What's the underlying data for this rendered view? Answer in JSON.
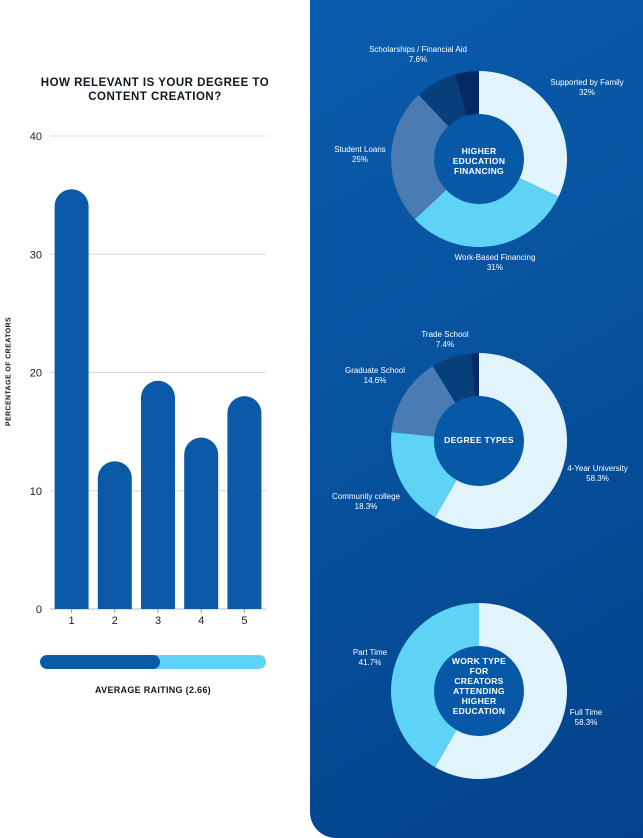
{
  "colors": {
    "bar": "#0a5aa8",
    "progress_track": "#5ed3f5",
    "panel_bg": "#07529e",
    "grid": "#d8d8d8",
    "donut_palette": [
      "#e2f4fb",
      "#5ed3f5",
      "#4a7bb3",
      "#063f7a",
      "#06357a",
      "#052a66"
    ]
  },
  "chart_data": [
    {
      "type": "bar",
      "title": "HOW RELEVANT IS YOUR DEGREE TO CONTENT CREATION?",
      "title_lines": [
        "HOW RELEVANT IS YOUR DEGREE TO",
        "CONTENT CREATION?"
      ],
      "xlabel": "",
      "ylabel": "PERCENTAGE OF CREATORS",
      "categories": [
        "1",
        "2",
        "3",
        "4",
        "5"
      ],
      "values": [
        35.5,
        12.5,
        19.3,
        14.5,
        18.0
      ],
      "ylim": [
        0,
        40
      ],
      "yticks": [
        0,
        10,
        20,
        30,
        40
      ],
      "grid": true
    },
    {
      "type": "pie",
      "center_label": "HIGHER EDUCATION FINANCING",
      "center_lines": [
        "HIGHER",
        "EDUCATION",
        "FINANCING"
      ],
      "slices": [
        {
          "name": "Supported by Family",
          "value": 32,
          "label": "32%"
        },
        {
          "name": "Work-Based Financing",
          "value": 31,
          "label": "31%"
        },
        {
          "name": "Student Loans",
          "value": 25,
          "label": "25%"
        },
        {
          "name": "Scholarships / Financial Aid",
          "value": 7.6,
          "label": "7.6%"
        },
        {
          "name": "",
          "value": 4.4,
          "label": ""
        }
      ]
    },
    {
      "type": "pie",
      "center_label": "DEGREE TYPES",
      "center_lines": [
        "DEGREE TYPES"
      ],
      "slices": [
        {
          "name": "4-Year University",
          "value": 58.3,
          "label": "58.3%"
        },
        {
          "name": "Community college",
          "value": 18.3,
          "label": "18.3%"
        },
        {
          "name": "Graduate School",
          "value": 14.6,
          "label": "14.6%"
        },
        {
          "name": "Trade School",
          "value": 7.4,
          "label": "7.4%"
        },
        {
          "name": "",
          "value": 1.4,
          "label": ""
        }
      ]
    },
    {
      "type": "pie",
      "center_label": "WORK TYPE FOR CREATORS ATTENDING HIGHER EDUCATION",
      "center_lines": [
        "WORK TYPE",
        "FOR",
        "CREATORS",
        "ATTENDING",
        "HIGHER",
        "EDUCATION"
      ],
      "slices": [
        {
          "name": "Full Time",
          "value": 58.3,
          "label": "58.3%"
        },
        {
          "name": "Part Time",
          "value": 41.7,
          "label": "41.7%"
        }
      ]
    }
  ],
  "average_rating": {
    "label": "AVERAGE RAITING (2.66)",
    "value": 2.66,
    "max": 5,
    "fill_fraction": 0.53
  }
}
